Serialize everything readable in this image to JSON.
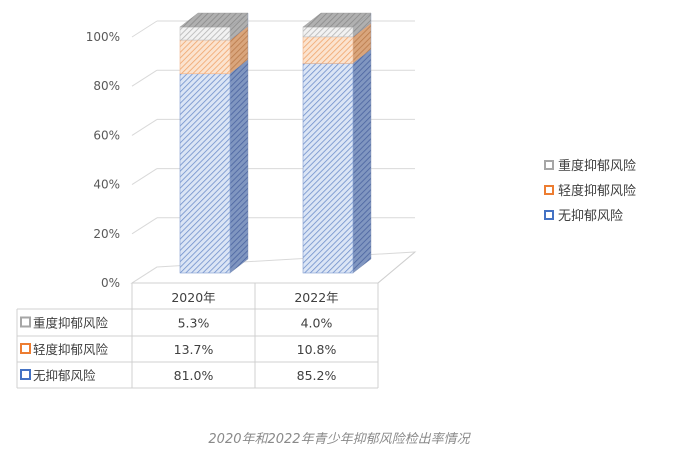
{
  "chart_data": {
    "type": "bar",
    "subtype": "stacked-percent-3d",
    "title": "2020年和2022年青少年抑郁风险检出率情况",
    "xlabel": "",
    "ylabel": "",
    "ylim": [
      0,
      100
    ],
    "y_ticks": [
      "0%",
      "20%",
      "40%",
      "60%",
      "80%",
      "100%"
    ],
    "grid": true,
    "legend_position": "right",
    "categories": [
      "2020年",
      "2022年"
    ],
    "series": [
      {
        "name": "无抑郁风险",
        "values": [
          81.0,
          85.2
        ],
        "labels": [
          "81.0%",
          "85.2%"
        ],
        "color": "#8faadc"
      },
      {
        "name": "轻度抑郁风险",
        "values": [
          13.7,
          10.8
        ],
        "labels": [
          "13.7%",
          "10.8%"
        ],
        "color": "#f4b183"
      },
      {
        "name": "重度抑郁风险",
        "values": [
          5.3,
          4.0
        ],
        "labels": [
          "5.3%",
          "4.0%"
        ],
        "color": "#c9c9c9"
      }
    ],
    "data_table": {
      "header": [
        "",
        "2020年",
        "2022年"
      ],
      "rows": [
        {
          "label": "重度抑郁风险",
          "values": [
            "5.3%",
            "4.0%"
          ]
        },
        {
          "label": "轻度抑郁风险",
          "values": [
            "13.7%",
            "10.8%"
          ]
        },
        {
          "label": "无抑郁风险",
          "values": [
            "81.0%",
            "85.2%"
          ]
        }
      ]
    }
  },
  "legend": {
    "items": [
      {
        "label": "重度抑郁风险",
        "color": "#a6a6a6"
      },
      {
        "label": "轻度抑郁风险",
        "color": "#ed7d31"
      },
      {
        "label": "无抑郁风险",
        "color": "#4472c4"
      }
    ]
  },
  "caption": "2020年和2022年青少年抑郁风险检出率情况"
}
